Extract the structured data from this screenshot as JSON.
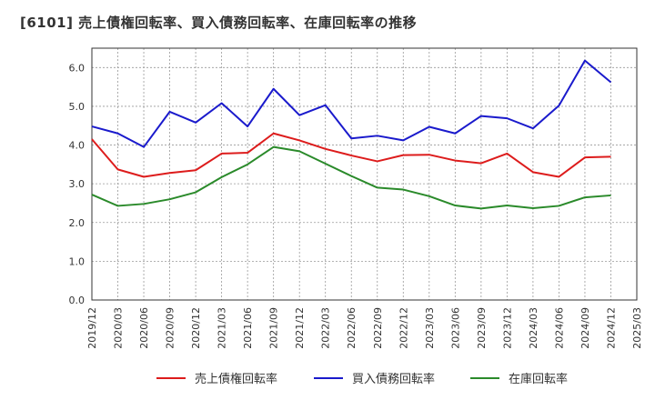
{
  "chart_data": {
    "type": "line",
    "title": "[6101]  売上債権回転率、買入債務回転率、在庫回転率の推移",
    "xlabel": "",
    "ylabel": "",
    "ylim": [
      0,
      6.5
    ],
    "yticks": [
      "0.0",
      "1.0",
      "2.0",
      "3.0",
      "4.0",
      "5.0",
      "6.0"
    ],
    "ytick_values": [
      0,
      1,
      2,
      3,
      4,
      5,
      6
    ],
    "categories": [
      "2019/12",
      "2020/03",
      "2020/06",
      "2020/09",
      "2020/12",
      "2021/03",
      "2021/06",
      "2021/09",
      "2021/12",
      "2022/03",
      "2022/06",
      "2022/09",
      "2022/12",
      "2023/03",
      "2023/06",
      "2023/09",
      "2023/12",
      "2024/03",
      "2024/06",
      "2024/09",
      "2024/12",
      "2025/03"
    ],
    "grid": true,
    "legend_position": "bottom",
    "series": [
      {
        "name": "売上債権回転率",
        "color": "#dd1c1c",
        "values": [
          4.15,
          3.37,
          3.18,
          3.28,
          3.35,
          3.78,
          3.8,
          4.3,
          4.12,
          3.9,
          3.73,
          3.58,
          3.74,
          3.75,
          3.6,
          3.53,
          3.78,
          3.3,
          3.18,
          3.68,
          3.7,
          null
        ]
      },
      {
        "name": "買入債務回転率",
        "color": "#1a1acc",
        "values": [
          4.48,
          4.3,
          3.95,
          4.86,
          4.58,
          5.08,
          4.48,
          5.45,
          4.77,
          5.03,
          4.17,
          4.24,
          4.12,
          4.47,
          4.3,
          4.75,
          4.69,
          4.43,
          5.02,
          6.18,
          5.62,
          null
        ]
      },
      {
        "name": "在庫回転率",
        "color": "#2a8a2a",
        "values": [
          2.72,
          2.43,
          2.48,
          2.6,
          2.78,
          3.17,
          3.5,
          3.95,
          3.84,
          3.52,
          3.2,
          2.9,
          2.85,
          2.68,
          2.44,
          2.36,
          2.44,
          2.37,
          2.43,
          2.65,
          2.7,
          null
        ]
      }
    ]
  }
}
